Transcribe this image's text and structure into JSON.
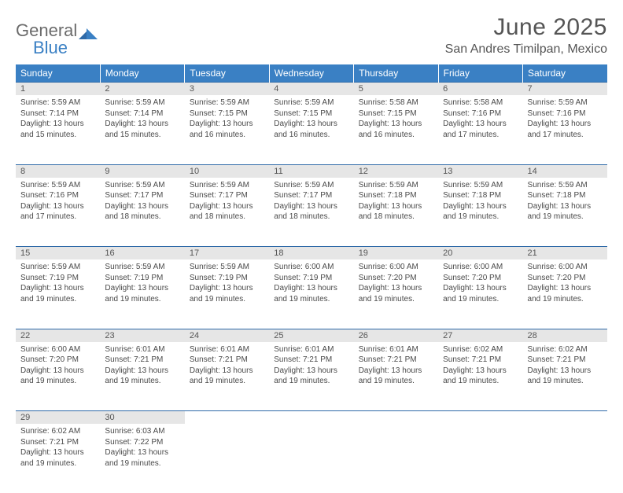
{
  "logo": {
    "text1": "General",
    "text2": "Blue"
  },
  "title": "June 2025",
  "location": "San Andres Timilpan, Mexico",
  "colors": {
    "header_bg": "#3a80c4",
    "header_text": "#ffffff",
    "day_bg": "#e6e6e6",
    "separator": "#2f6aa8",
    "body_text": "#4a4a4a",
    "title_text": "#555555",
    "logo_gray": "#6b6b6b",
    "logo_blue": "#3a80c4",
    "page_bg": "#ffffff"
  },
  "typography": {
    "title_fontsize": 30,
    "location_fontsize": 16,
    "weekday_fontsize": 12,
    "daynum_fontsize": 11,
    "cell_fontsize": 10,
    "font_family": "Arial"
  },
  "weekdays": [
    "Sunday",
    "Monday",
    "Tuesday",
    "Wednesday",
    "Thursday",
    "Friday",
    "Saturday"
  ],
  "weeks": [
    [
      {
        "day": "1",
        "sunrise": "Sunrise: 5:59 AM",
        "sunset": "Sunset: 7:14 PM",
        "dl1": "Daylight: 13 hours",
        "dl2": "and 15 minutes."
      },
      {
        "day": "2",
        "sunrise": "Sunrise: 5:59 AM",
        "sunset": "Sunset: 7:14 PM",
        "dl1": "Daylight: 13 hours",
        "dl2": "and 15 minutes."
      },
      {
        "day": "3",
        "sunrise": "Sunrise: 5:59 AM",
        "sunset": "Sunset: 7:15 PM",
        "dl1": "Daylight: 13 hours",
        "dl2": "and 16 minutes."
      },
      {
        "day": "4",
        "sunrise": "Sunrise: 5:59 AM",
        "sunset": "Sunset: 7:15 PM",
        "dl1": "Daylight: 13 hours",
        "dl2": "and 16 minutes."
      },
      {
        "day": "5",
        "sunrise": "Sunrise: 5:58 AM",
        "sunset": "Sunset: 7:15 PM",
        "dl1": "Daylight: 13 hours",
        "dl2": "and 16 minutes."
      },
      {
        "day": "6",
        "sunrise": "Sunrise: 5:58 AM",
        "sunset": "Sunset: 7:16 PM",
        "dl1": "Daylight: 13 hours",
        "dl2": "and 17 minutes."
      },
      {
        "day": "7",
        "sunrise": "Sunrise: 5:59 AM",
        "sunset": "Sunset: 7:16 PM",
        "dl1": "Daylight: 13 hours",
        "dl2": "and 17 minutes."
      }
    ],
    [
      {
        "day": "8",
        "sunrise": "Sunrise: 5:59 AM",
        "sunset": "Sunset: 7:16 PM",
        "dl1": "Daylight: 13 hours",
        "dl2": "and 17 minutes."
      },
      {
        "day": "9",
        "sunrise": "Sunrise: 5:59 AM",
        "sunset": "Sunset: 7:17 PM",
        "dl1": "Daylight: 13 hours",
        "dl2": "and 18 minutes."
      },
      {
        "day": "10",
        "sunrise": "Sunrise: 5:59 AM",
        "sunset": "Sunset: 7:17 PM",
        "dl1": "Daylight: 13 hours",
        "dl2": "and 18 minutes."
      },
      {
        "day": "11",
        "sunrise": "Sunrise: 5:59 AM",
        "sunset": "Sunset: 7:17 PM",
        "dl1": "Daylight: 13 hours",
        "dl2": "and 18 minutes."
      },
      {
        "day": "12",
        "sunrise": "Sunrise: 5:59 AM",
        "sunset": "Sunset: 7:18 PM",
        "dl1": "Daylight: 13 hours",
        "dl2": "and 18 minutes."
      },
      {
        "day": "13",
        "sunrise": "Sunrise: 5:59 AM",
        "sunset": "Sunset: 7:18 PM",
        "dl1": "Daylight: 13 hours",
        "dl2": "and 19 minutes."
      },
      {
        "day": "14",
        "sunrise": "Sunrise: 5:59 AM",
        "sunset": "Sunset: 7:18 PM",
        "dl1": "Daylight: 13 hours",
        "dl2": "and 19 minutes."
      }
    ],
    [
      {
        "day": "15",
        "sunrise": "Sunrise: 5:59 AM",
        "sunset": "Sunset: 7:19 PM",
        "dl1": "Daylight: 13 hours",
        "dl2": "and 19 minutes."
      },
      {
        "day": "16",
        "sunrise": "Sunrise: 5:59 AM",
        "sunset": "Sunset: 7:19 PM",
        "dl1": "Daylight: 13 hours",
        "dl2": "and 19 minutes."
      },
      {
        "day": "17",
        "sunrise": "Sunrise: 5:59 AM",
        "sunset": "Sunset: 7:19 PM",
        "dl1": "Daylight: 13 hours",
        "dl2": "and 19 minutes."
      },
      {
        "day": "18",
        "sunrise": "Sunrise: 6:00 AM",
        "sunset": "Sunset: 7:19 PM",
        "dl1": "Daylight: 13 hours",
        "dl2": "and 19 minutes."
      },
      {
        "day": "19",
        "sunrise": "Sunrise: 6:00 AM",
        "sunset": "Sunset: 7:20 PM",
        "dl1": "Daylight: 13 hours",
        "dl2": "and 19 minutes."
      },
      {
        "day": "20",
        "sunrise": "Sunrise: 6:00 AM",
        "sunset": "Sunset: 7:20 PM",
        "dl1": "Daylight: 13 hours",
        "dl2": "and 19 minutes."
      },
      {
        "day": "21",
        "sunrise": "Sunrise: 6:00 AM",
        "sunset": "Sunset: 7:20 PM",
        "dl1": "Daylight: 13 hours",
        "dl2": "and 19 minutes."
      }
    ],
    [
      {
        "day": "22",
        "sunrise": "Sunrise: 6:00 AM",
        "sunset": "Sunset: 7:20 PM",
        "dl1": "Daylight: 13 hours",
        "dl2": "and 19 minutes."
      },
      {
        "day": "23",
        "sunrise": "Sunrise: 6:01 AM",
        "sunset": "Sunset: 7:21 PM",
        "dl1": "Daylight: 13 hours",
        "dl2": "and 19 minutes."
      },
      {
        "day": "24",
        "sunrise": "Sunrise: 6:01 AM",
        "sunset": "Sunset: 7:21 PM",
        "dl1": "Daylight: 13 hours",
        "dl2": "and 19 minutes."
      },
      {
        "day": "25",
        "sunrise": "Sunrise: 6:01 AM",
        "sunset": "Sunset: 7:21 PM",
        "dl1": "Daylight: 13 hours",
        "dl2": "and 19 minutes."
      },
      {
        "day": "26",
        "sunrise": "Sunrise: 6:01 AM",
        "sunset": "Sunset: 7:21 PM",
        "dl1": "Daylight: 13 hours",
        "dl2": "and 19 minutes."
      },
      {
        "day": "27",
        "sunrise": "Sunrise: 6:02 AM",
        "sunset": "Sunset: 7:21 PM",
        "dl1": "Daylight: 13 hours",
        "dl2": "and 19 minutes."
      },
      {
        "day": "28",
        "sunrise": "Sunrise: 6:02 AM",
        "sunset": "Sunset: 7:21 PM",
        "dl1": "Daylight: 13 hours",
        "dl2": "and 19 minutes."
      }
    ],
    [
      {
        "day": "29",
        "sunrise": "Sunrise: 6:02 AM",
        "sunset": "Sunset: 7:21 PM",
        "dl1": "Daylight: 13 hours",
        "dl2": "and 19 minutes."
      },
      {
        "day": "30",
        "sunrise": "Sunrise: 6:03 AM",
        "sunset": "Sunset: 7:22 PM",
        "dl1": "Daylight: 13 hours",
        "dl2": "and 19 minutes."
      },
      null,
      null,
      null,
      null,
      null
    ]
  ]
}
